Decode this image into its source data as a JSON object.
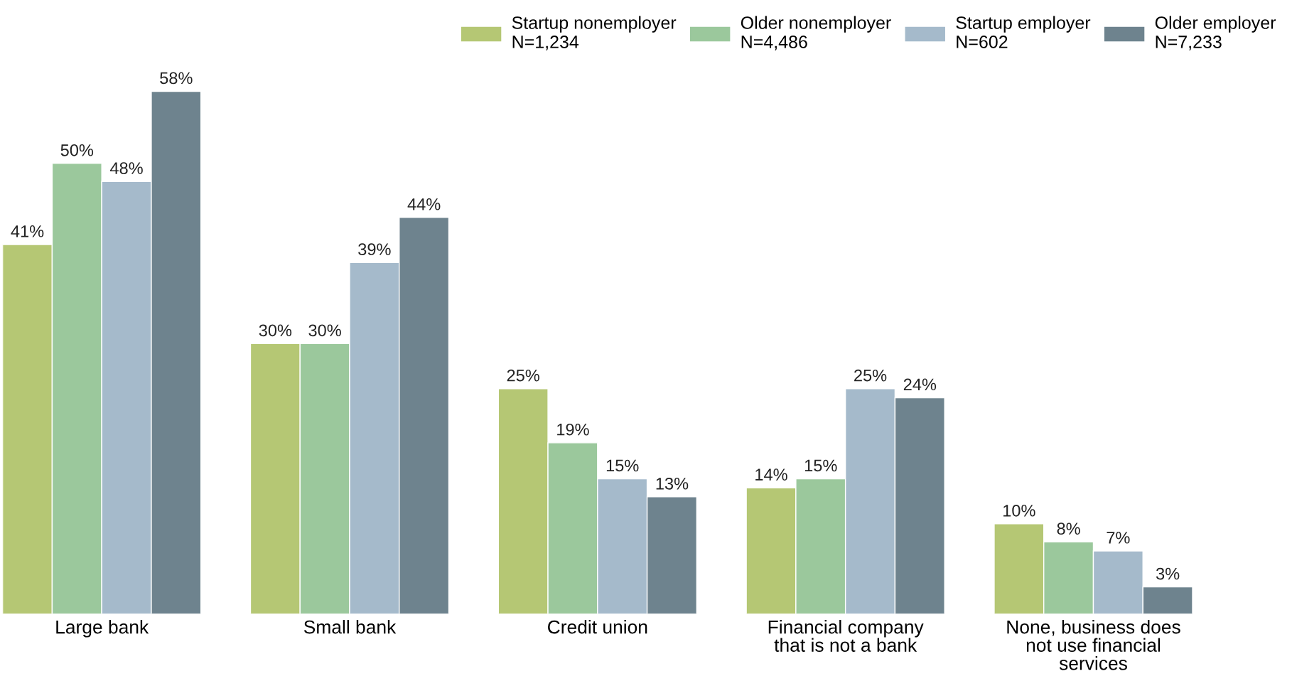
{
  "chart_data": {
    "type": "bar",
    "categories": [
      "Large bank",
      "Small bank",
      "Credit union",
      "Financial company\nthat is not a bank",
      "None, business does\nnot use financial\nservices"
    ],
    "series": [
      {
        "name": "Startup nonemployer\nN=1,234",
        "color": "#b5c774",
        "values": [
          41,
          30,
          25,
          14,
          10
        ],
        "value_labels": [
          "41%",
          "30%",
          "25%",
          "14%",
          "10%"
        ]
      },
      {
        "name": "Older nonemployer\nN=4,486",
        "color": "#9bc89c",
        "values": [
          50,
          30,
          19,
          15,
          8
        ],
        "value_labels": [
          "50%",
          "30%",
          "19%",
          "15%",
          "8%"
        ]
      },
      {
        "name": "Startup employer\nN=602",
        "color": "#a5bacb",
        "values": [
          48,
          39,
          15,
          25,
          7
        ],
        "value_labels": [
          "48%",
          "39%",
          "15%",
          "25%",
          "7%"
        ]
      },
      {
        "name": "Older employer\nN=7,233",
        "color": "#6e838e",
        "values": [
          58,
          44,
          13,
          24,
          3
        ],
        "value_labels": [
          "58%",
          "44%",
          "13%",
          "24%",
          "3%"
        ]
      }
    ],
    "legend": "top right",
    "grid": false
  }
}
